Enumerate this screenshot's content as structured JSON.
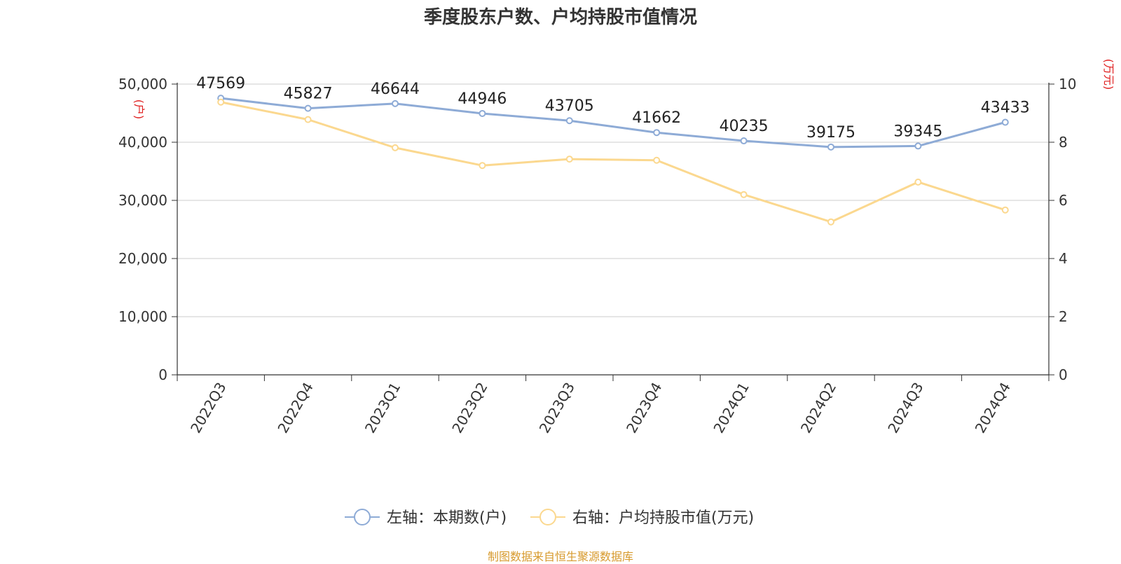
{
  "title": "季度股东户数、户均持股市值情况",
  "source": "制图数据来自恒生聚源数据库",
  "chart_data": {
    "type": "line",
    "title": "季度股东户数、户均持股市值情况",
    "categories": [
      "2022Q3",
      "2022Q4",
      "2023Q1",
      "2023Q2",
      "2023Q3",
      "2023Q4",
      "2024Q1",
      "2024Q2",
      "2024Q3",
      "2024Q4"
    ],
    "left_axis": {
      "unit": "(户)",
      "ylim": [
        0,
        50000
      ],
      "ticks": [
        "0",
        "10,000",
        "20,000",
        "30,000",
        "40,000",
        "50,000"
      ]
    },
    "right_axis": {
      "unit": "(万元)",
      "ylim": [
        0,
        10
      ],
      "ticks": [
        "0",
        "2",
        "4",
        "6",
        "8",
        "10"
      ]
    },
    "series": [
      {
        "name": "左轴：本期数(户)",
        "axis": "left",
        "color": "#8eabd6",
        "values": [
          47569,
          45827,
          46644,
          44946,
          43705,
          41662,
          40235,
          39175,
          39345,
          43433
        ],
        "labels": [
          "47569",
          "45827",
          "46644",
          "44946",
          "43705",
          "41662",
          "40235",
          "39175",
          "39345",
          "43433"
        ]
      },
      {
        "name": "右轴：户均持股市值(万元)",
        "axis": "right",
        "color": "#fbd88f",
        "values": [
          9.38,
          8.78,
          7.81,
          7.2,
          7.42,
          7.38,
          6.2,
          5.26,
          6.63,
          5.67
        ]
      }
    ],
    "grid": true,
    "legend_position": "bottom"
  }
}
